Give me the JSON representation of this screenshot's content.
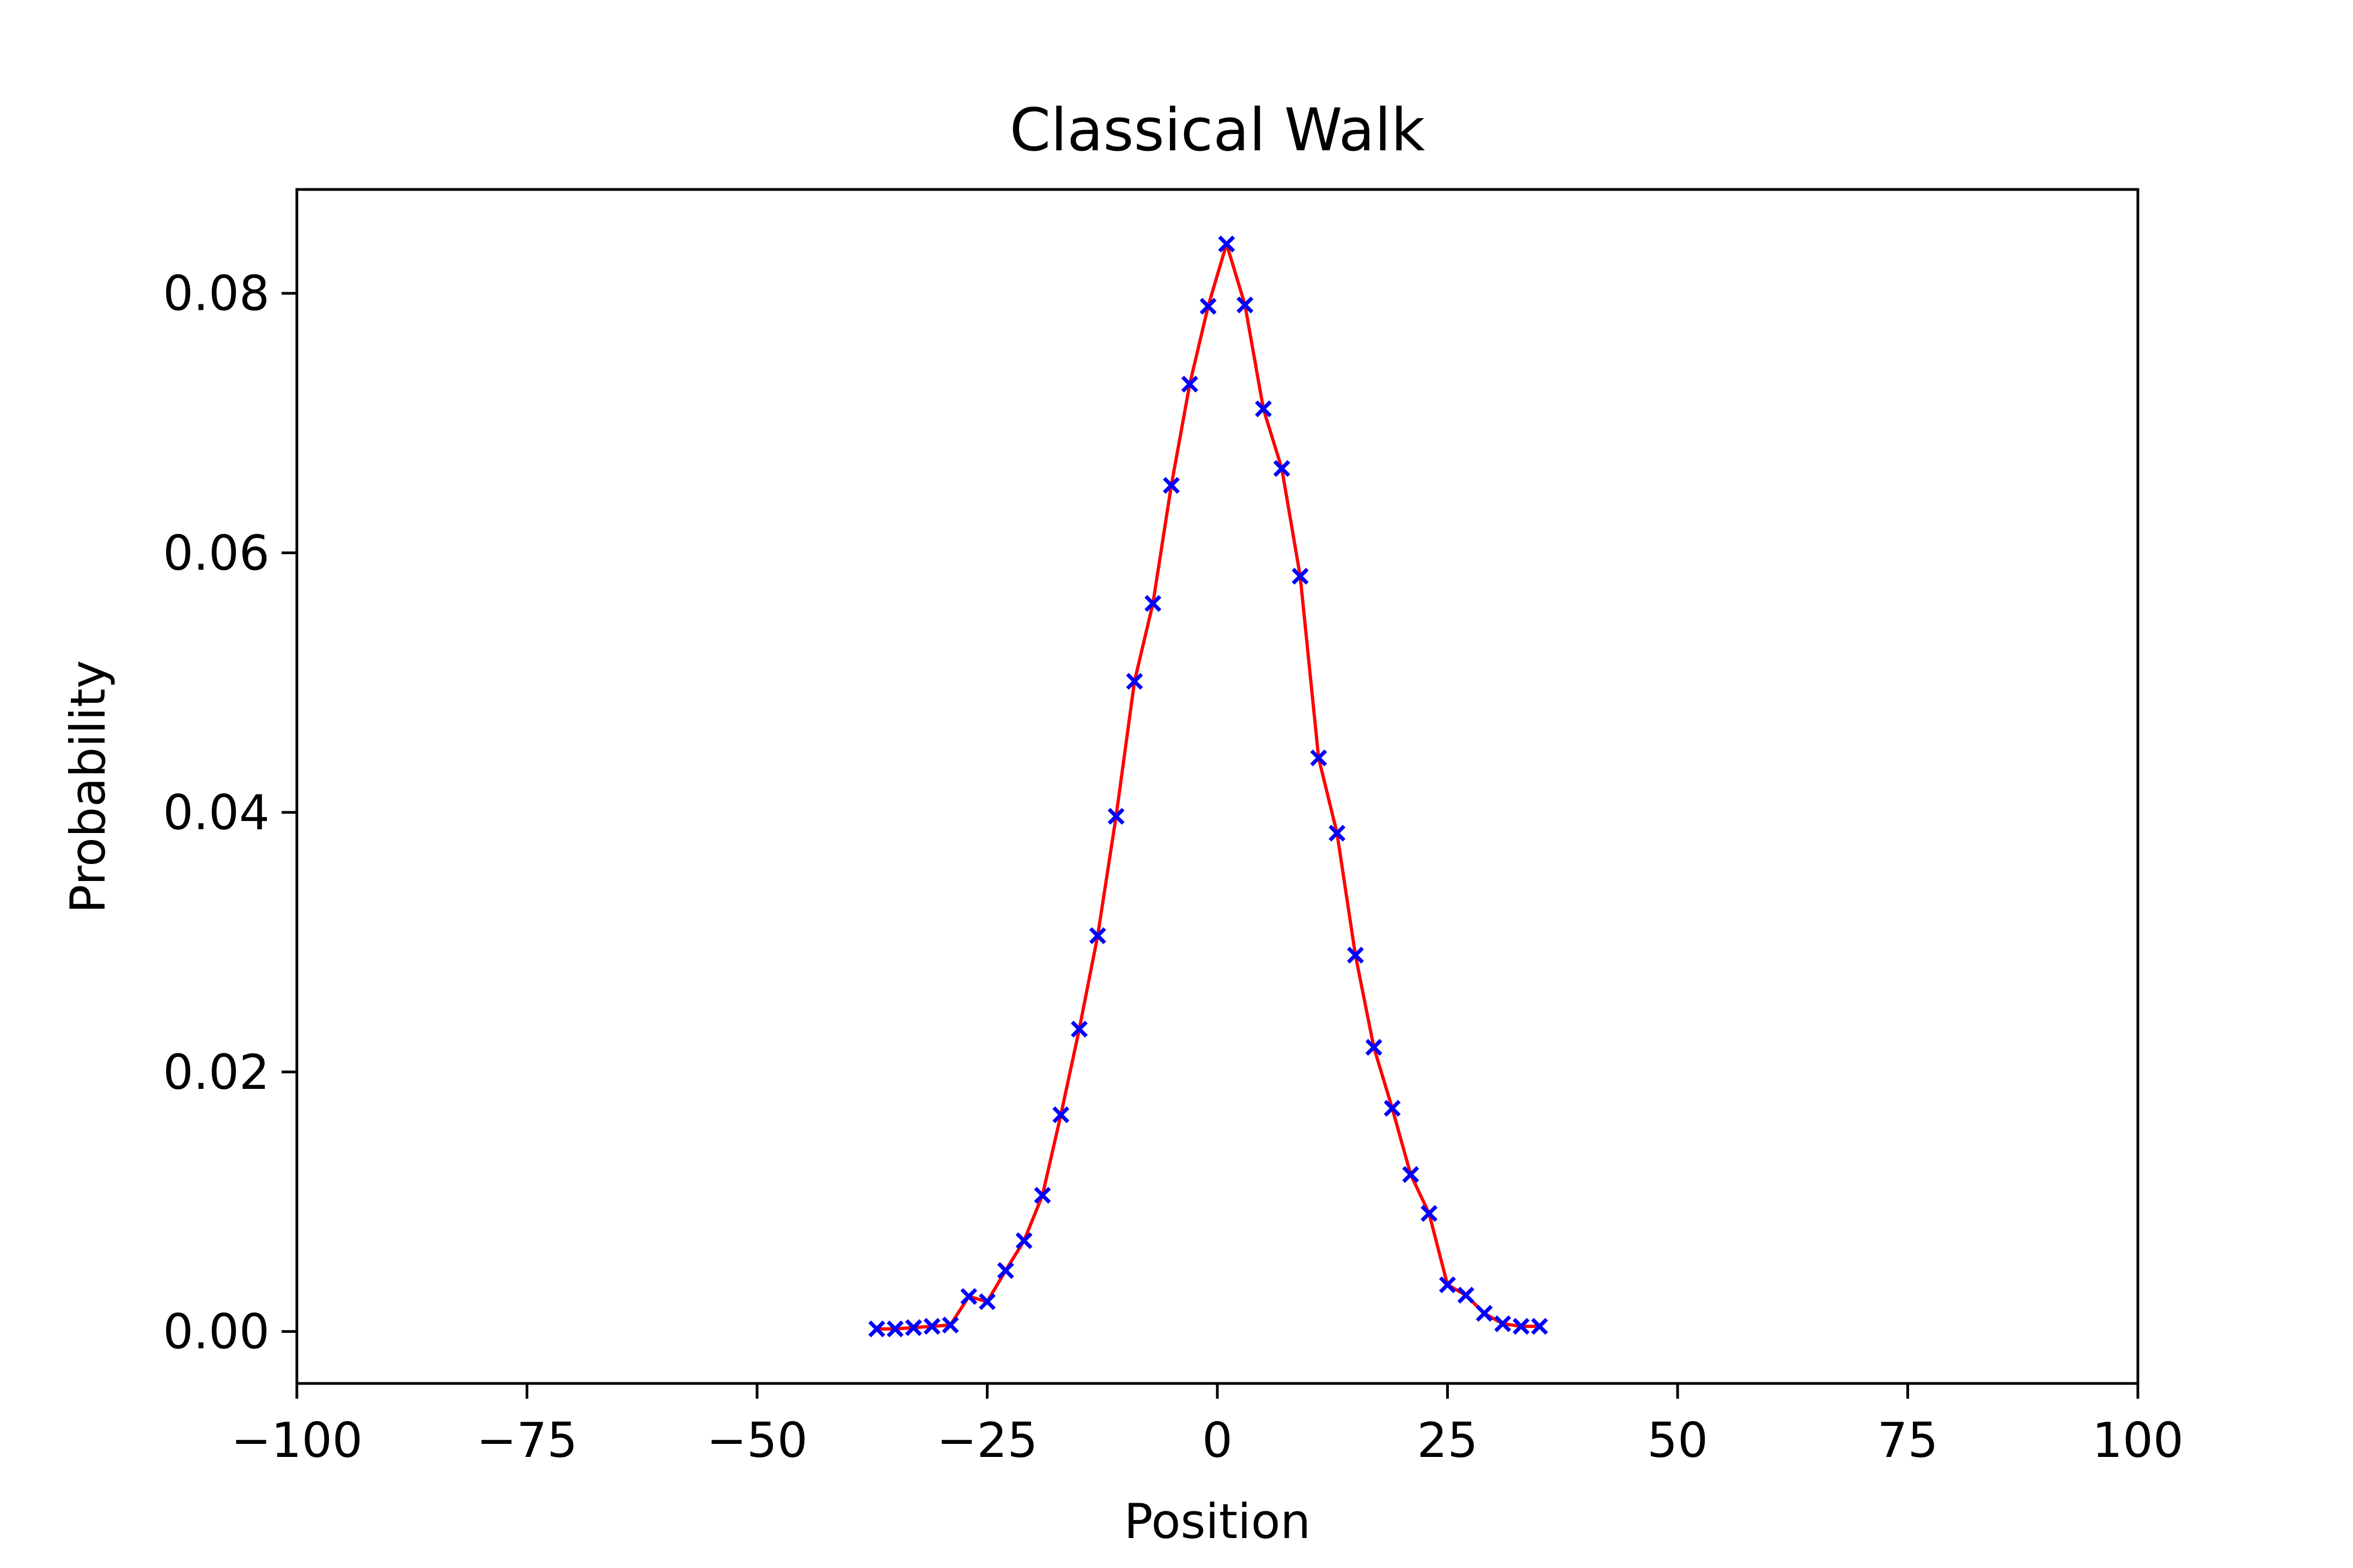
{
  "chart_data": {
    "type": "line",
    "title": "Classical Walk",
    "xlabel": "Position",
    "ylabel": "Probability",
    "xlim": [
      -100,
      100
    ],
    "ylim": [
      -0.004,
      0.088
    ],
    "xticks": [
      -100,
      -75,
      -50,
      -25,
      0,
      25,
      50,
      75,
      100
    ],
    "xtick_labels": [
      "−100",
      "−75",
      "−50",
      "−25",
      "0",
      "25",
      "50",
      "75",
      "100"
    ],
    "yticks": [
      0.0,
      0.02,
      0.04,
      0.06,
      0.08
    ],
    "ytick_labels": [
      "0.00",
      "0.02",
      "0.04",
      "0.06",
      "0.08"
    ],
    "grid": false,
    "line_color": "#ff0000",
    "marker_color": "#0000ff",
    "marker": "x",
    "series": [
      {
        "x": [
          -37,
          -35,
          -33,
          -31,
          -29,
          -27,
          -25,
          -23,
          -21,
          -19,
          -17,
          -15,
          -13,
          -11,
          -9,
          -7,
          -5,
          -3,
          -1,
          1,
          3,
          5,
          7,
          9,
          11,
          13,
          15,
          17,
          19,
          21,
          23,
          25,
          27,
          29,
          31,
          33,
          35
        ],
        "y": [
          0.0002,
          0.0002,
          0.0003,
          0.0004,
          0.0005,
          0.0027,
          0.0023,
          0.0047,
          0.007,
          0.0105,
          0.0167,
          0.0233,
          0.0305,
          0.0397,
          0.0501,
          0.0561,
          0.0652,
          0.073,
          0.079,
          0.0838,
          0.0791,
          0.0711,
          0.0665,
          0.0582,
          0.0442,
          0.0384,
          0.029,
          0.0219,
          0.0172,
          0.0121,
          0.0091,
          0.0036,
          0.0028,
          0.0014,
          0.0006,
          0.0004,
          0.0004
        ]
      }
    ]
  }
}
